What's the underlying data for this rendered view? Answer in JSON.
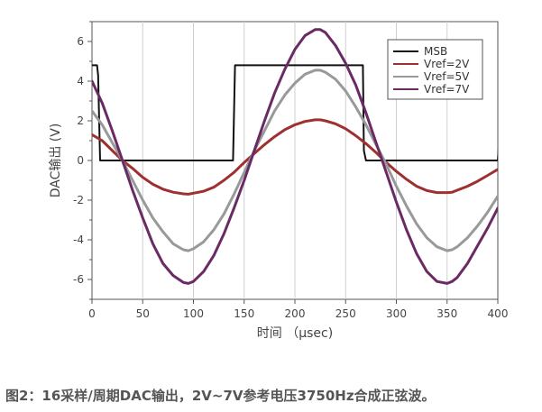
{
  "chart_data": {
    "type": "line",
    "xlabel": "时间 （μsec)",
    "ylabel": "DAC输出 (V)",
    "xlim": [
      0,
      400
    ],
    "ylim": [
      -7,
      7
    ],
    "xticks": [
      0,
      50,
      100,
      150,
      200,
      250,
      300,
      350,
      400
    ],
    "yticks": [
      -6,
      -4,
      -2,
      0,
      2,
      4,
      6
    ],
    "grid": "vertical",
    "legend_position": "top-right",
    "series": [
      {
        "name": "MSB",
        "color": "#111111",
        "x": [
          0,
          1,
          1,
          5,
          6,
          8,
          139,
          141,
          142,
          267,
          268,
          270,
          400,
          405
        ],
        "y": [
          4.8,
          4.8,
          4.8,
          4.8,
          4.3,
          0,
          0,
          4.8,
          4.8,
          4.8,
          0.5,
          0,
          0,
          3.6
        ]
      },
      {
        "name": "Vref=2V",
        "color": "#9e3030",
        "x": [
          0,
          10,
          20,
          30,
          40,
          50,
          60,
          70,
          80,
          90,
          95,
          100,
          110,
          120,
          130,
          140,
          150,
          160,
          170,
          180,
          190,
          200,
          210,
          220,
          225,
          230,
          240,
          250,
          260,
          270,
          280,
          290,
          300,
          310,
          320,
          330,
          340,
          350,
          355,
          360,
          370,
          380,
          390,
          400
        ],
        "y": [
          1.3,
          1.0,
          0.5,
          0.0,
          -0.4,
          -0.85,
          -1.2,
          -1.45,
          -1.6,
          -1.68,
          -1.7,
          -1.65,
          -1.55,
          -1.35,
          -1.0,
          -0.6,
          -0.1,
          0.35,
          0.8,
          1.2,
          1.55,
          1.8,
          1.97,
          2.05,
          2.05,
          2.0,
          1.85,
          1.6,
          1.25,
          0.85,
          0.4,
          -0.1,
          -0.55,
          -0.95,
          -1.3,
          -1.52,
          -1.62,
          -1.62,
          -1.6,
          -1.5,
          -1.3,
          -1.05,
          -0.75,
          -0.45
        ]
      },
      {
        "name": "Vref=5V",
        "color": "#999999",
        "x": [
          0,
          10,
          20,
          30,
          40,
          50,
          60,
          70,
          80,
          90,
          95,
          100,
          110,
          120,
          130,
          140,
          150,
          160,
          170,
          180,
          190,
          200,
          210,
          220,
          225,
          230,
          240,
          250,
          260,
          270,
          280,
          290,
          300,
          310,
          320,
          330,
          340,
          350,
          355,
          360,
          370,
          380,
          390,
          400
        ],
        "y": [
          2.5,
          1.8,
          0.9,
          0.0,
          -1.0,
          -2.0,
          -2.9,
          -3.6,
          -4.2,
          -4.5,
          -4.55,
          -4.45,
          -4.1,
          -3.5,
          -2.7,
          -1.7,
          -0.6,
          0.5,
          1.5,
          2.5,
          3.3,
          3.9,
          4.35,
          4.55,
          4.55,
          4.45,
          4.1,
          3.5,
          2.7,
          1.8,
          0.8,
          -0.2,
          -1.3,
          -2.3,
          -3.2,
          -3.9,
          -4.35,
          -4.55,
          -4.5,
          -4.35,
          -3.9,
          -3.3,
          -2.6,
          -1.8
        ]
      },
      {
        "name": "Vref=7V",
        "color": "#6a2a64",
        "x": [
          0,
          10,
          20,
          30,
          40,
          50,
          60,
          70,
          80,
          90,
          95,
          100,
          110,
          120,
          130,
          140,
          150,
          160,
          170,
          180,
          190,
          200,
          210,
          220,
          225,
          230,
          240,
          250,
          260,
          270,
          280,
          290,
          300,
          310,
          320,
          330,
          340,
          350,
          355,
          360,
          370,
          380,
          390,
          400
        ],
        "y": [
          4.0,
          2.9,
          1.5,
          0.0,
          -1.5,
          -2.9,
          -4.2,
          -5.2,
          -5.8,
          -6.15,
          -6.2,
          -6.1,
          -5.6,
          -4.8,
          -3.7,
          -2.4,
          -1.0,
          0.5,
          2.0,
          3.4,
          4.6,
          5.6,
          6.3,
          6.6,
          6.6,
          6.45,
          5.8,
          4.9,
          3.8,
          2.4,
          0.9,
          -0.6,
          -2.1,
          -3.5,
          -4.7,
          -5.6,
          -6.1,
          -6.2,
          -6.1,
          -5.9,
          -5.2,
          -4.3,
          -3.4,
          -2.4
        ]
      }
    ]
  },
  "caption": "图2：16采样/周期DAC输出，2V~7V参考电压3750Hz合成正弦波。"
}
